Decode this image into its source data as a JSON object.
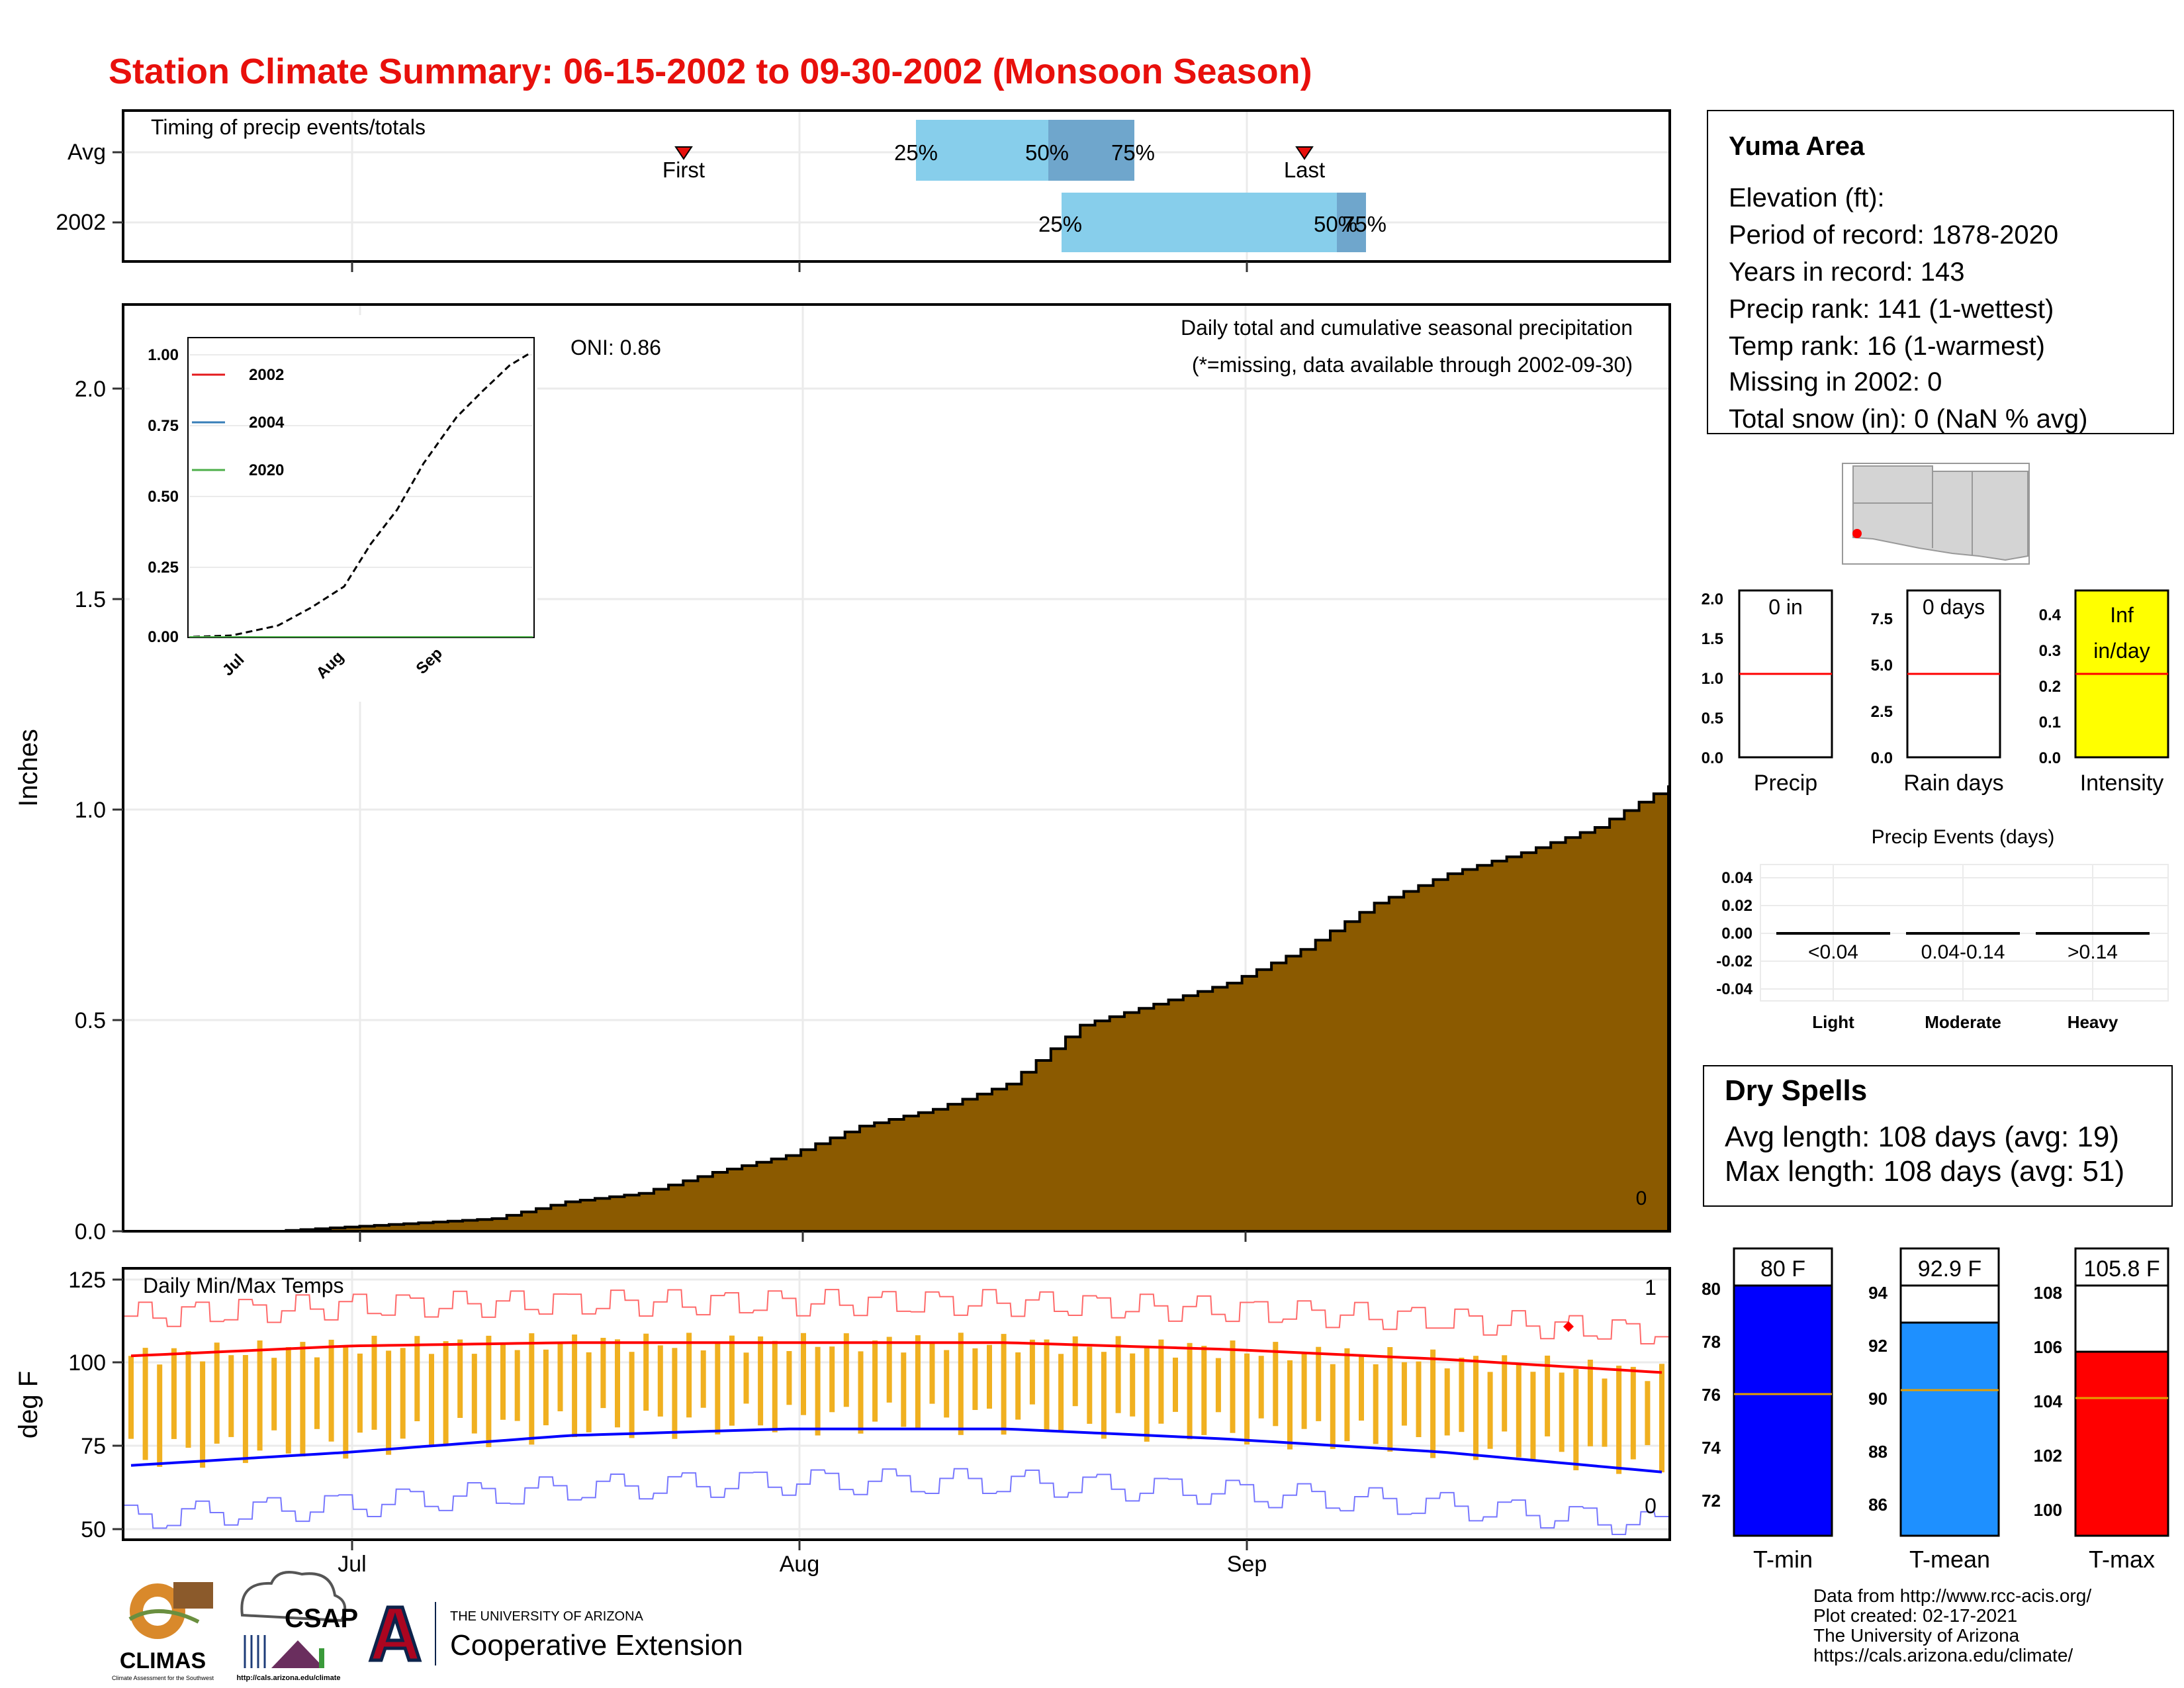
{
  "header": {
    "title": "Station Climate Summary: 06-15-2002 to 09-30-2002 (Monsoon Season)"
  },
  "colors": {
    "title": "#e8100c",
    "bar_light": "#87ceeb",
    "bar_dark": "#6fa6cc",
    "precip_fill": "#8b5a00",
    "temp_bars": "#f0b020",
    "max_line": "#ff0000",
    "min_line": "#0000ff",
    "intensity_fill": "#ffff00",
    "tmin_fill": "#0000ff",
    "tmean_fill": "#1e90ff",
    "tmax_fill": "#ff0000",
    "dry_spell_text": "#a52a2a"
  },
  "timing": {
    "label": "Timing of precip events/totals",
    "rows": [
      "Avg",
      "2002"
    ],
    "avg": {
      "pct25": "25%",
      "pct50": "50%",
      "pct75": "75%",
      "first": "First",
      "last": "Last"
    },
    "y2002": {
      "pct25": "25%",
      "pct50": "50%",
      "pct75": "75%"
    }
  },
  "precip": {
    "title": "Daily total and cumulative seasonal precipitation",
    "subtitle": "(*=missing, data available through 2002-09-30)",
    "oni": "ONI: 0.86",
    "ylabel": "Inches",
    "yticks": [
      "0.0",
      "0.5",
      "1.0",
      "1.5",
      "2.0"
    ],
    "zero_label": "0",
    "inset": {
      "yticks": [
        "0.00",
        "0.25",
        "0.50",
        "0.75",
        "1.00"
      ],
      "xticks": [
        "Jul",
        "Aug",
        "Sep"
      ],
      "legend": [
        "2002",
        "2004",
        "2020"
      ]
    }
  },
  "temps": {
    "title": "Daily Min/Max Temps",
    "ylabel": "deg F",
    "yticks": [
      "50",
      "75",
      "100",
      "125"
    ],
    "max_count": "1",
    "min_count": "0",
    "xticks": [
      "Jul",
      "Aug",
      "Sep"
    ]
  },
  "station": {
    "name": "Yuma Area",
    "lines": [
      "Elevation (ft):",
      "Period of record: 1878-2020",
      "Years in record: 143",
      "Precip rank: 141 (1-wettest)",
      "Temp rank: 16 (1-warmest)",
      "Missing in 2002: 0",
      "Total snow (in): 0 (NaN % avg)"
    ]
  },
  "gauges": {
    "precip": {
      "label": "Precip",
      "value": "0 in",
      "ticks": [
        "0.0",
        "0.5",
        "1.0",
        "1.5",
        "2.0"
      ]
    },
    "raindays": {
      "label": "Rain days",
      "value": "0 days",
      "ticks": [
        "0.0",
        "2.5",
        "5.0",
        "7.5"
      ]
    },
    "intensity": {
      "label": "Intensity",
      "value1": "Inf",
      "value2": "in/day",
      "ticks": [
        "0.0",
        "0.1",
        "0.2",
        "0.3",
        "0.4"
      ]
    }
  },
  "events": {
    "title": "Precip Events (days)",
    "yticks": [
      "0.04",
      "0.02",
      "0.00",
      "-0.02",
      "-0.04"
    ],
    "bins": [
      "<0.04",
      "0.04-0.14",
      ">0.14"
    ],
    "categories": [
      "Light",
      "Moderate",
      "Heavy"
    ]
  },
  "dry_spells": {
    "title": "Dry Spells",
    "avg": "Avg length: 108 days (avg: 19)",
    "max": "Max length: 108 days (avg: 51)"
  },
  "temp_gauges": {
    "tmin": {
      "label": "T-min",
      "value": "80 F",
      "ticks": [
        "72",
        "74",
        "76",
        "78",
        "80"
      ]
    },
    "tmean": {
      "label": "T-mean",
      "value": "92.9 F",
      "ticks": [
        "86",
        "88",
        "90",
        "92",
        "94"
      ]
    },
    "tmax": {
      "label": "T-max",
      "value": "105.8 F",
      "ticks": [
        "100",
        "102",
        "104",
        "106",
        "108"
      ]
    }
  },
  "credits": [
    "Data from http://www.rcc-acis.org/",
    "Plot created: 02-17-2021",
    "The University of Arizona",
    "https://cals.arizona.edu/climate/"
  ],
  "logos": {
    "climas": "CLIMAS",
    "climas_sub": "Climate Assessment for the Southwest",
    "csap": "CSAP",
    "csap_url": "http://cals.arizona.edu/climate",
    "ua_line1": "THE UNIVERSITY OF ARIZONA",
    "ua_line2": "Cooperative Extension"
  },
  "chart_data": [
    {
      "type": "area",
      "title": "Daily total and cumulative seasonal precipitation",
      "ylabel": "Inches",
      "ylim": [
        0,
        2.2
      ],
      "x": [
        "06-15",
        "06-20",
        "06-25",
        "06-30",
        "07-05",
        "07-10",
        "07-15",
        "07-20",
        "07-25",
        "07-30",
        "08-04",
        "08-09",
        "08-14",
        "08-19",
        "08-24",
        "08-29",
        "09-03",
        "09-08",
        "09-13",
        "09-18",
        "09-23",
        "09-30"
      ],
      "values": [
        0.0,
        0.0,
        0.0,
        0.01,
        0.02,
        0.03,
        0.07,
        0.09,
        0.14,
        0.18,
        0.25,
        0.29,
        0.35,
        0.49,
        0.54,
        0.59,
        0.67,
        0.78,
        0.85,
        0.9,
        0.96,
        1.06
      ]
    },
    {
      "type": "line",
      "title": "Daily Min/Max Temps",
      "ylabel": "deg F",
      "ylim": [
        47,
        128
      ],
      "x": [
        "06-15",
        "07-01",
        "07-15",
        "08-01",
        "08-15",
        "09-01",
        "09-15",
        "09-30"
      ],
      "series": [
        {
          "values": [
            102,
            105,
            106,
            106,
            106,
            104,
            101,
            97
          ]
        },
        {
          "values": [
            69,
            73,
            78,
            80,
            80,
            77,
            73,
            67
          ]
        }
      ]
    }
  ]
}
